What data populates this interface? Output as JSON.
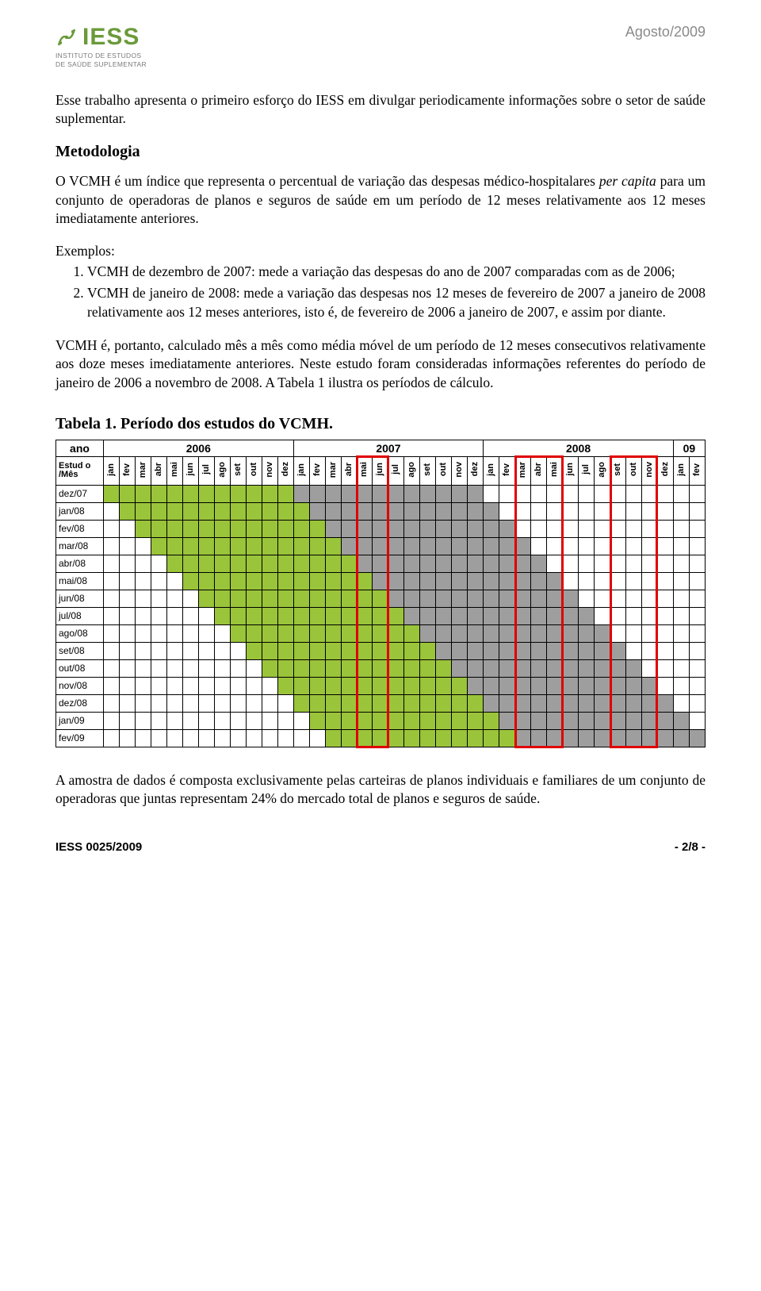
{
  "header": {
    "logo_text": "IESS",
    "logo_sub_line1": "INSTITUTO DE ESTUDOS",
    "logo_sub_line2": "DE SAÚDE SUPLEMENTAR",
    "date": "Agosto/2009",
    "logo_mark_color": "#6a9a3a"
  },
  "intro": "Esse trabalho apresenta o primeiro esforço do IESS em divulgar periodicamente informações sobre o setor de saúde suplementar.",
  "methodology": {
    "title": "Metodologia",
    "para1": "O VCMH é um índice que representa o percentual de variação das despesas médico-hospitalares per capita para um conjunto de operadoras de planos e seguros de saúde em um período de 12 meses relativamente aos 12 meses imediatamente anteriores.",
    "examples_label": "Exemplos:",
    "example1": "VCMH de dezembro de 2007: mede a variação das despesas do ano de 2007 comparadas com as de 2006;",
    "example2": "VCMH de janeiro de 2008: mede a variação das despesas nos 12 meses de fevereiro de 2007 a janeiro de 2008 relativamente aos 12 meses anteriores, isto é, de fevereiro de 2006 a janeiro de 2007, e assim por diante.",
    "para2": "VCMH é, portanto, calculado mês a mês como média móvel de um período de 12 meses consecutivos relativamente aos doze meses imediatamente anteriores. Neste estudo foram consideradas informações referentes do período de janeiro de 2006 a novembro de 2008. A Tabela 1 ilustra os períodos de cálculo."
  },
  "table": {
    "title": "Tabela 1.    Período dos estudos do VCMH.",
    "corner_label": "Estud o /Mês",
    "year_header_label": "ano",
    "years": [
      {
        "label": "2006",
        "span": 12
      },
      {
        "label": "2007",
        "span": 12
      },
      {
        "label": "2008",
        "span": 12
      },
      {
        "label": "09",
        "span": 2
      }
    ],
    "months": [
      "jan",
      "fev",
      "mar",
      "abr",
      "mai",
      "jun",
      "jul",
      "ago",
      "set",
      "out",
      "nov",
      "dez",
      "jan",
      "fev",
      "mar",
      "abr",
      "mai",
      "jun",
      "jul",
      "ago",
      "set",
      "out",
      "nov",
      "dez",
      "jan",
      "fev",
      "mar",
      "abr",
      "mai",
      "jun",
      "jul",
      "ago",
      "set",
      "out",
      "nov",
      "dez",
      "jan",
      "fev"
    ],
    "studies": [
      "dez/07",
      "jan/08",
      "fev/08",
      "mar/08",
      "abr/08",
      "mai/08",
      "jun/08",
      "jul/08",
      "ago/08",
      "set/08",
      "out/08",
      "nov/08",
      "dez/08",
      "jan/09",
      "fev/09"
    ],
    "colors": {
      "green": "#9ac43a",
      "gray": "#9e9e9e",
      "white": "#ffffff"
    },
    "red_boxes": [
      {
        "col_start": 16,
        "col_end": 17
      },
      {
        "col_start": 26,
        "col_end": 28
      },
      {
        "col_start": 32,
        "col_end": 34
      }
    ]
  },
  "footnote": "A amostra de dados é composta exclusivamente pelas carteiras de planos individuais e familiares de um conjunto de operadoras que juntas representam 24% do mercado total de planos e seguros de saúde.",
  "footer": {
    "left": "IESS 0025/2009",
    "right": "- 2/8 -"
  }
}
